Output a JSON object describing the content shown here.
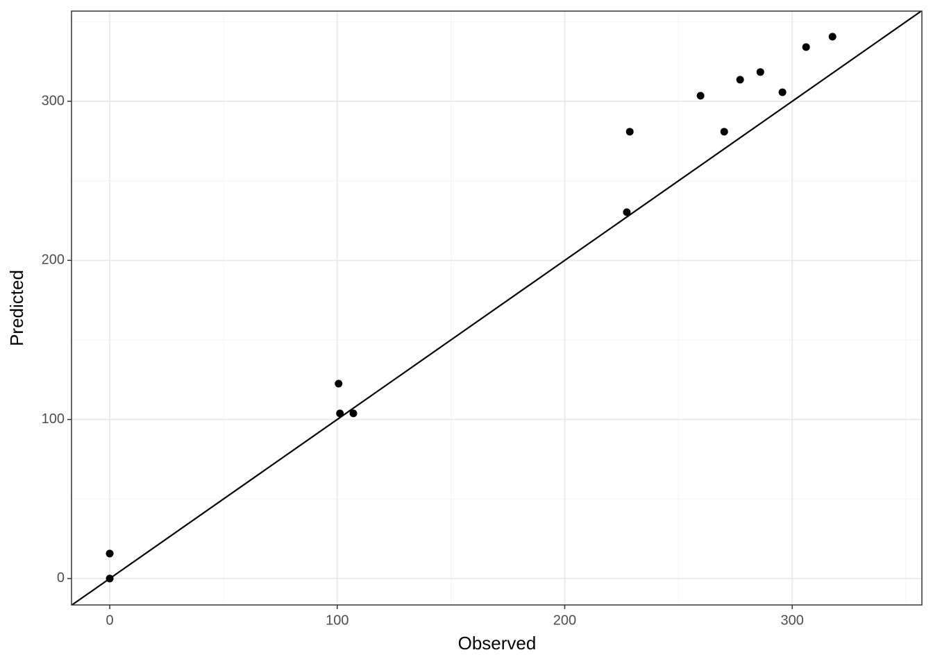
{
  "chart_data": {
    "type": "scatter",
    "x_label": "Observed",
    "y_label": "Predicted",
    "x": [
      0,
      0,
      100.6,
      101.2,
      107.1,
      227.3,
      228.6,
      259.7,
      270.1,
      277.1,
      286.0,
      295.7,
      306.1,
      317.7
    ],
    "values": [
      15.7,
      0,
      122.5,
      103.8,
      103.8,
      230.3,
      280.9,
      303.5,
      280.9,
      313.6,
      318.4,
      305.7,
      334.1,
      340.6
    ],
    "color": "#000000",
    "xlim": [
      -16.8,
      357.0
    ],
    "ylim": [
      -16.6,
      356.7
    ],
    "xticks": [
      0,
      100,
      200,
      300
    ],
    "yticks": [
      0,
      100,
      200,
      300
    ],
    "minor_xticks": [
      50,
      150,
      250,
      350
    ],
    "minor_yticks": [
      50,
      150,
      250,
      350
    ],
    "grid": true,
    "identity_line": true
  }
}
